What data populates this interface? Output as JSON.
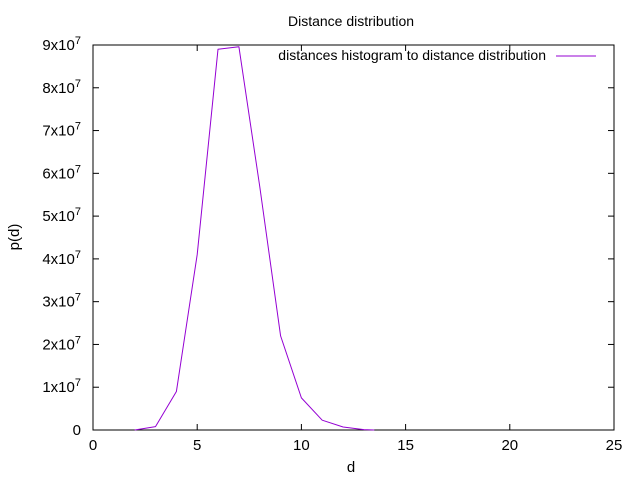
{
  "chart_data": {
    "type": "line",
    "title": "Distance distribution",
    "xlabel": "d",
    "ylabel": "p(d)",
    "xlim": [
      0,
      25
    ],
    "ylim": [
      0,
      90000000
    ],
    "x_ticks": [
      0,
      5,
      10,
      15,
      20,
      25
    ],
    "x_tick_labels": [
      "0",
      "5",
      "10",
      "15",
      "20",
      "25"
    ],
    "y_ticks": [
      0,
      10000000,
      20000000,
      30000000,
      40000000,
      50000000,
      60000000,
      70000000,
      80000000,
      90000000
    ],
    "y_tick_labels": [
      {
        "base": "0",
        "exp": ""
      },
      {
        "base": "1x10",
        "exp": "7"
      },
      {
        "base": "2x10",
        "exp": "7"
      },
      {
        "base": "3x10",
        "exp": "7"
      },
      {
        "base": "4x10",
        "exp": "7"
      },
      {
        "base": "5x10",
        "exp": "7"
      },
      {
        "base": "6x10",
        "exp": "7"
      },
      {
        "base": "7x10",
        "exp": "7"
      },
      {
        "base": "8x10",
        "exp": "7"
      },
      {
        "base": "9x10",
        "exp": "7"
      }
    ],
    "grid": false,
    "legend_position": "top-right",
    "series": [
      {
        "name": "distances histogram to distance distribution",
        "color": "#9400d3",
        "x": [
          2,
          3,
          4,
          5,
          6,
          7,
          8,
          9,
          10,
          11,
          12,
          13,
          13.5
        ],
        "y": [
          0,
          800000,
          9000000,
          41000000,
          89000000,
          89600000,
          57000000,
          22000000,
          7500000,
          2300000,
          700000,
          100000,
          0
        ]
      }
    ]
  }
}
